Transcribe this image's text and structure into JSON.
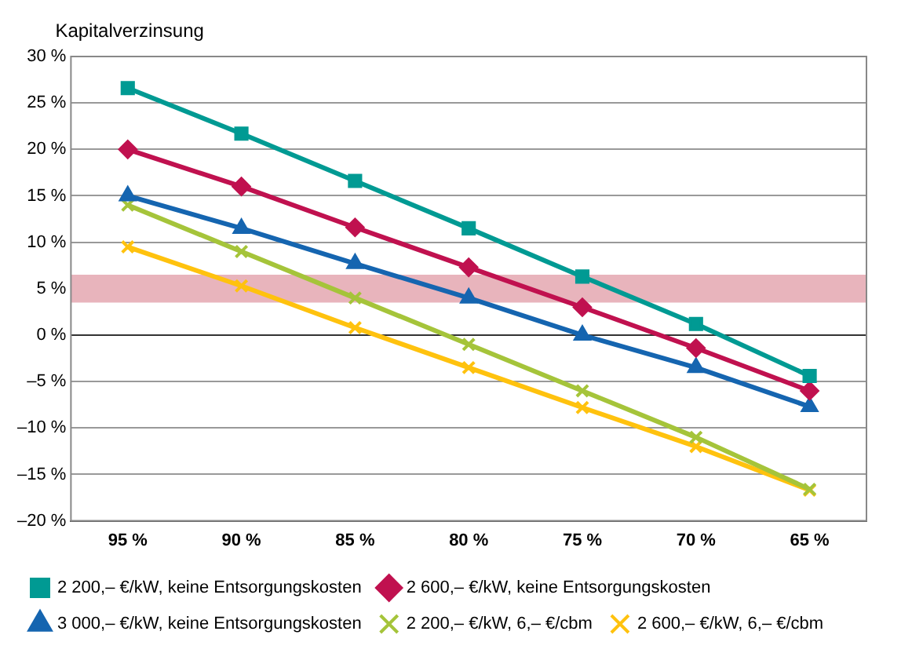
{
  "chart_data": {
    "type": "line",
    "ylabel": "Kapitalverzinsung",
    "categories": [
      "95 %",
      "90 %",
      "85 %",
      "80 %",
      "75 %",
      "70 %",
      "65 %"
    ],
    "series": [
      {
        "name": "2 200,– €/kW, keine Entsorgungskosten",
        "color": "#009a93",
        "marker": "square",
        "values": [
          26.6,
          21.7,
          16.6,
          11.5,
          6.3,
          1.2,
          -4.4
        ]
      },
      {
        "name": "2 600,– €/kW, keine Entsorgungskosten",
        "color": "#c0114f",
        "marker": "diamond",
        "values": [
          20,
          16,
          11.6,
          7.3,
          3,
          -1.4,
          -6
        ]
      },
      {
        "name": "3 000,– €/kW, keine Entsorgungskosten",
        "color": "#1565b0",
        "marker": "triangle",
        "values": [
          15,
          11.5,
          7.7,
          4,
          0,
          -3.5,
          -7.7
        ]
      },
      {
        "name": "2 200,– €/kW, 6,– €/cbm",
        "color": "#a5c43a",
        "marker": "cross",
        "values": [
          14,
          9,
          4,
          -1,
          -6,
          -11,
          -16.6
        ]
      },
      {
        "name": "2 600,– €/kW, 6,– €/cbm",
        "color": "#ffc20e",
        "marker": "cross",
        "values": [
          9.5,
          5.3,
          0.8,
          -3.5,
          -7.8,
          -12,
          -16.7
        ]
      }
    ],
    "ylim": [
      -20,
      30
    ],
    "yticks": [
      {
        "value": -20,
        "label": "–20 %"
      },
      {
        "value": -15,
        "label": "–15 %"
      },
      {
        "value": -10,
        "label": "–10 %"
      },
      {
        "value": -5,
        "label": "–5 %"
      },
      {
        "value": 0,
        "label": "0 %"
      },
      {
        "value": 5,
        "label": "5 %"
      },
      {
        "value": 10,
        "label": "10 %"
      },
      {
        "value": 15,
        "label": "15 %"
      },
      {
        "value": 20,
        "label": "20 %"
      },
      {
        "value": 25,
        "label": "25 %"
      },
      {
        "value": 30,
        "label": "30 %"
      }
    ],
    "bands": [
      {
        "axis": "y",
        "from": 3.5,
        "to": 6.5,
        "color": "#e8b4bc"
      }
    ],
    "grid": "y",
    "legend": "bottom"
  }
}
